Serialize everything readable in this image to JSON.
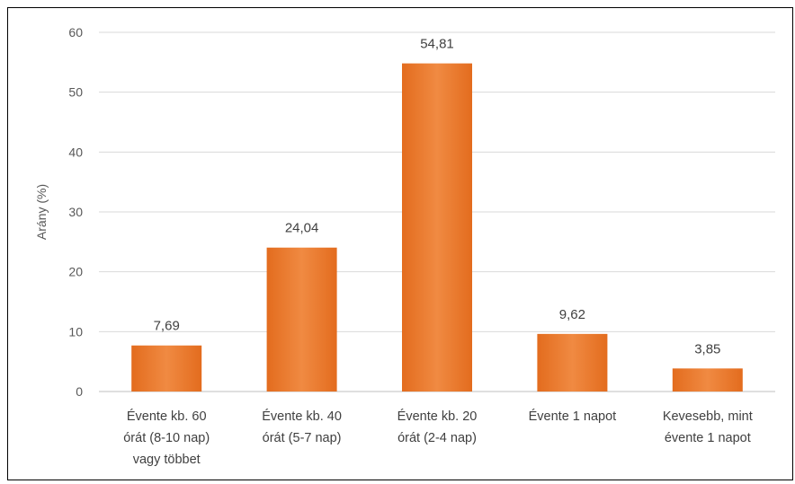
{
  "chart_data": {
    "type": "bar",
    "title": "",
    "xlabel": "",
    "ylabel": "Arány (%)",
    "ylim": [
      0,
      60
    ],
    "yticks": [
      0,
      10,
      20,
      30,
      40,
      50,
      60
    ],
    "grid": true,
    "legend": "none",
    "bar_color": "#ED7D31",
    "categories": [
      [
        "Évente kb. 60",
        "órát (8-10 nap)",
        "vagy többet"
      ],
      [
        "Évente kb. 40",
        "órát (5-7 nap)"
      ],
      [
        "Évente kb. 20",
        "órát (2-4 nap)"
      ],
      [
        "Évente 1 napot"
      ],
      [
        "Kevesebb, mint",
        "évente 1 napot"
      ]
    ],
    "values": [
      7.69,
      24.04,
      54.81,
      9.62,
      3.85
    ],
    "value_labels": [
      "7,69",
      "24,04",
      "54,81",
      "9,62",
      "3,85"
    ]
  }
}
